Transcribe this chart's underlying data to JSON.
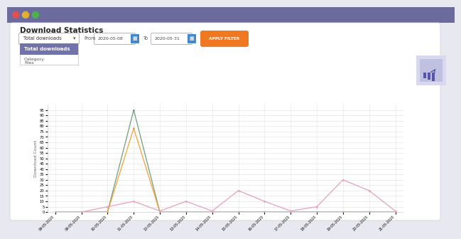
{
  "title": "Download Statistics",
  "ylabel": "Download Count",
  "x_labels": [
    "09-05-2020",
    "09-05-2020",
    "10-05-2020",
    "11-05-2020",
    "12-05-2020",
    "13-05-2020",
    "14-05-2020",
    "15-05-2020",
    "16-05-2020",
    "17-05-2020",
    "18-05-2020",
    "19-05-2020",
    "20-05-2020",
    "21-05-2020"
  ],
  "line1_values": [
    0,
    0,
    0,
    95,
    0,
    0,
    0,
    0,
    0,
    0,
    0,
    0,
    0,
    0
  ],
  "line2_values": [
    0,
    0,
    0,
    78,
    0,
    0,
    0,
    0,
    0,
    0,
    0,
    0,
    0,
    0
  ],
  "line3_values": [
    0,
    0,
    5,
    10,
    1,
    10,
    1,
    20,
    10,
    1,
    5,
    30,
    20,
    1
  ],
  "line1_color": "#6e9e7a",
  "line2_color": "#f5a033",
  "line3_color": "#e8a0b8",
  "ylim": [
    0,
    100
  ],
  "yticks": [
    0,
    5,
    10,
    15,
    20,
    25,
    30,
    35,
    40,
    45,
    50,
    55,
    60,
    65,
    70,
    75,
    80,
    85,
    90,
    95
  ],
  "outer_bg": "#e8e8f0",
  "content_bg": "#f0f0f5",
  "plot_bg": "#ffffff",
  "grid_color": "#e0e0e0",
  "header_color": "#6b6b9e",
  "dropdown_purple": "#7272aa",
  "dropdown_light": "#d8d8ee",
  "button_color": "#f07820",
  "button_text": "APPLY FILTER",
  "icon_outer_bg": "#d8d8f0",
  "icon_inner_bg": "#c0c0e0",
  "icon_color": "#5555aa",
  "from_date": "2020-05-08",
  "to_date": "2020-05-31",
  "dot_colors": [
    "#e05050",
    "#e0b030",
    "#50b050"
  ]
}
